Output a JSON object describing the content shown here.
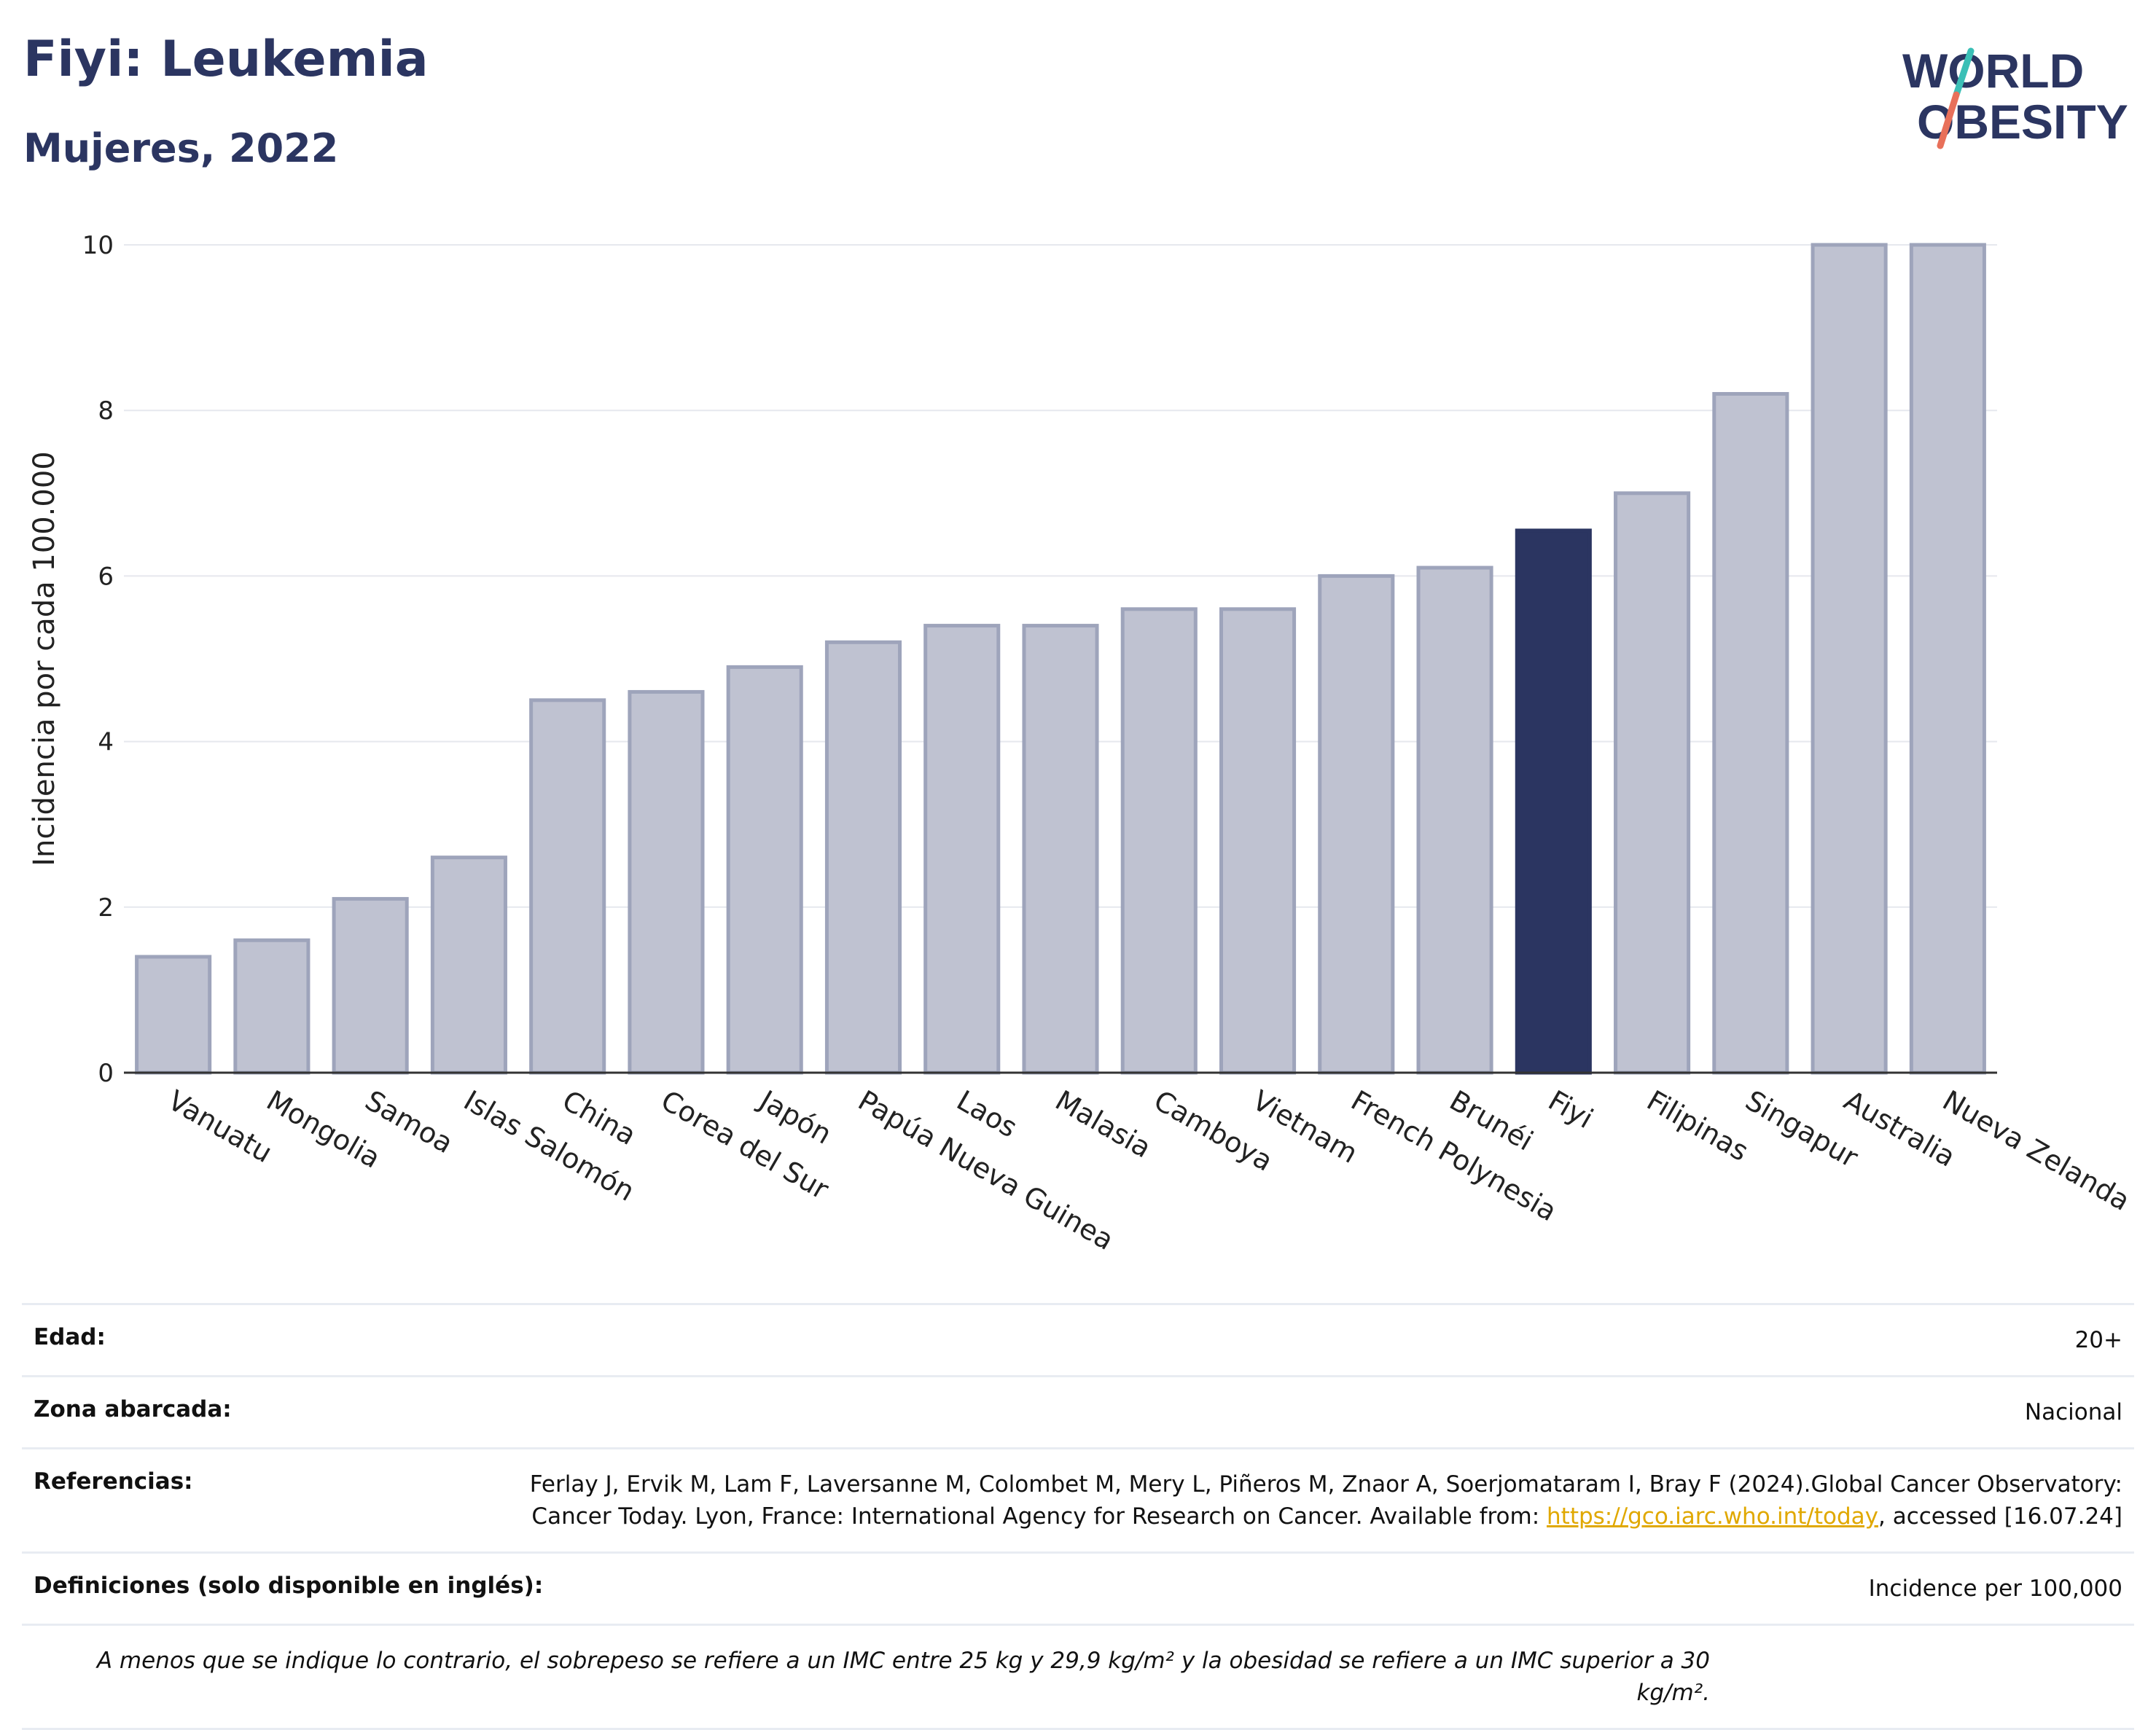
{
  "header": {
    "title": "Fiyi: Leukemia",
    "subtitle": "Mujeres, 2022",
    "logo_line1": "WORLD",
    "logo_line2": "OBESITY"
  },
  "colors": {
    "highlight": "#2b3561",
    "bar": "#bfc2d1",
    "bar_border": "#9ea4bb",
    "logo_text": "#2b3561",
    "logo_slash_top": "#3bbfb6",
    "logo_slash_bottom": "#e8705a"
  },
  "chart_data": {
    "type": "bar",
    "categories": [
      "Vanuatu",
      "Mongolia",
      "Samoa",
      "Islas Salomón",
      "China",
      "Corea del Sur",
      "Japón",
      "Papúa Nueva Guinea",
      "Laos",
      "Malasia",
      "Camboya",
      "Vietnam",
      "French Polynesia",
      "Brunéi",
      "Fiyi",
      "Filipinas",
      "Singapur",
      "Australia",
      "Nueva Zelanda"
    ],
    "values": [
      1.4,
      1.6,
      2.1,
      2.6,
      4.5,
      4.6,
      4.9,
      5.2,
      5.4,
      5.4,
      5.6,
      5.6,
      6.0,
      6.1,
      6.55,
      7.0,
      8.2,
      10.0,
      10.0
    ],
    "highlight": "Fiyi",
    "ylabel": "Incidencia por cada 100.000",
    "xlabel": "",
    "ylim": [
      0,
      10
    ],
    "yticks": [
      0,
      2,
      4,
      6,
      8,
      10
    ],
    "grid": true
  },
  "meta": {
    "age_label": "Edad:",
    "age_value": "20+",
    "zone_label": "Zona abarcada:",
    "zone_value": "Nacional",
    "refs_label": "Referencias:",
    "refs_text1": "Ferlay J, Ervik M, Lam F, Laversanne M, Colombet M, Mery L, Piñeros M, Znaor A, Soerjomataram I, Bray F (2024).Global Cancer Observatory: Cancer Today. Lyon, France: International Agency for Research on Cancer. Available from: ",
    "refs_link": "https://gco.iarc.who.int/today",
    "refs_text2": ", accessed [16.07.24]",
    "defs_label": "Definiciones (solo disponible en inglés):",
    "defs_value": "Incidence per 100,000",
    "note": "A menos que se indique lo contrario, el sobrepeso se refiere a un IMC entre 25 kg y 29,9 kg/m² y la obesidad se refiere a un IMC superior a 30 kg/m²."
  }
}
